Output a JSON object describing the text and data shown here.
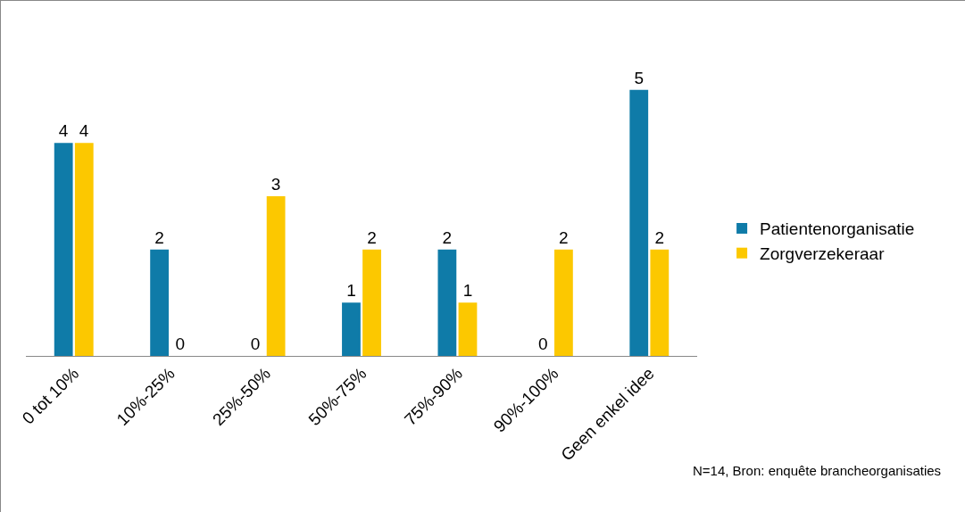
{
  "chart_data": {
    "type": "bar",
    "categories": [
      "0 tot 10%",
      "10%-25%",
      "25%-50%",
      "50%-75%",
      "75%-90%",
      "90%-100%",
      "Geen enkel idee"
    ],
    "series": [
      {
        "name": "Patientenorganisatie",
        "color": "#0f7ba8",
        "values": [
          4,
          2,
          0,
          1,
          2,
          0,
          5
        ]
      },
      {
        "name": "Zorgverzekeraar",
        "color": "#fcc800",
        "values": [
          4,
          0,
          3,
          2,
          1,
          2,
          2
        ]
      }
    ],
    "data_labels": true,
    "legend": "right",
    "grid": false,
    "tick_labels": "x",
    "annotations": [
      "N=14, Bron: enquête brancheorganisaties"
    ]
  }
}
